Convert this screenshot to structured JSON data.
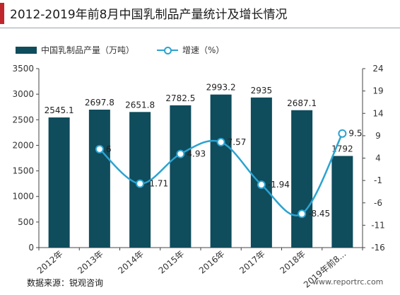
{
  "title": "2012-2019年前8月中国乳制品产量统计及增长情况",
  "legend": {
    "bar_label": "中国乳制品产量（万吨）",
    "line_label": "增速（%）"
  },
  "source": "数据来源：锐观咨询",
  "watermark": "www.reportrc.com",
  "colors": {
    "bar": "#0f4c5c",
    "line": "#2ba3d1",
    "accent": "#c0272d"
  },
  "chart_data": {
    "type": "bar",
    "categories": [
      "2012年",
      "2013年",
      "2014年",
      "2015年",
      "2016年",
      "2017年",
      "2018年",
      "2019年前8..."
    ],
    "series": [
      {
        "name": "中国乳制品产量（万吨）",
        "type": "bar",
        "axis": "left",
        "values": [
          2545.1,
          2697.8,
          2651.8,
          2782.5,
          2993.2,
          2935,
          2687.1,
          1792
        ],
        "labels": [
          "2545.1",
          "2697.8",
          "2651.8",
          "2782.5",
          "2993.2",
          "2935",
          "2687.1",
          "1792"
        ]
      },
      {
        "name": "增速（%）",
        "type": "line",
        "axis": "right",
        "smooth": true,
        "values": [
          null,
          6,
          -1.71,
          4.93,
          7.57,
          -1.94,
          -8.45,
          9.5
        ],
        "labels": [
          "",
          "6",
          "-1.71",
          "4.93",
          "7.57",
          "-1.94",
          "-8.45",
          "9.5"
        ]
      }
    ],
    "y_left": {
      "min": 0,
      "max": 3500,
      "ticks": [
        0,
        500,
        1000,
        1500,
        2000,
        2500,
        3000,
        3500
      ],
      "tick_labels": [
        "0",
        "500",
        "1000",
        "1500",
        "2000",
        "2500",
        "3000",
        "3500"
      ]
    },
    "y_right": {
      "min": -16,
      "max": 24,
      "ticks": [
        -16,
        -11,
        -6,
        -1,
        4,
        9,
        14,
        19,
        24
      ],
      "tick_labels": [
        "-16",
        "-11",
        "-6",
        "-1",
        "4",
        "9",
        "14",
        "19",
        "24"
      ]
    },
    "grid": false,
    "legend_position": "top-left"
  }
}
